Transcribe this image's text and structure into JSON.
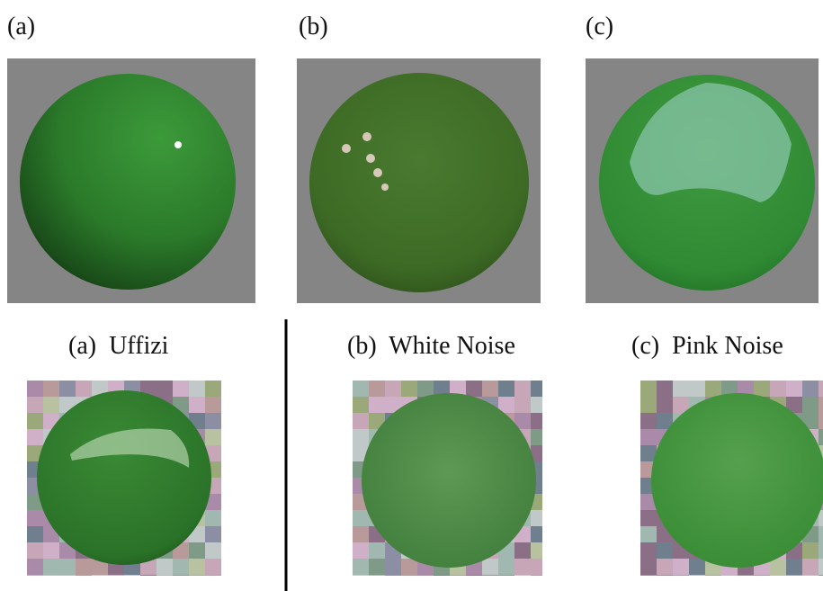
{
  "top_labels": [
    "(a)",
    "(b)",
    "(c)"
  ],
  "captions": [
    "(a)  Uffizi",
    "(b)  White Noise",
    "(c)  Pink Noise"
  ]
}
